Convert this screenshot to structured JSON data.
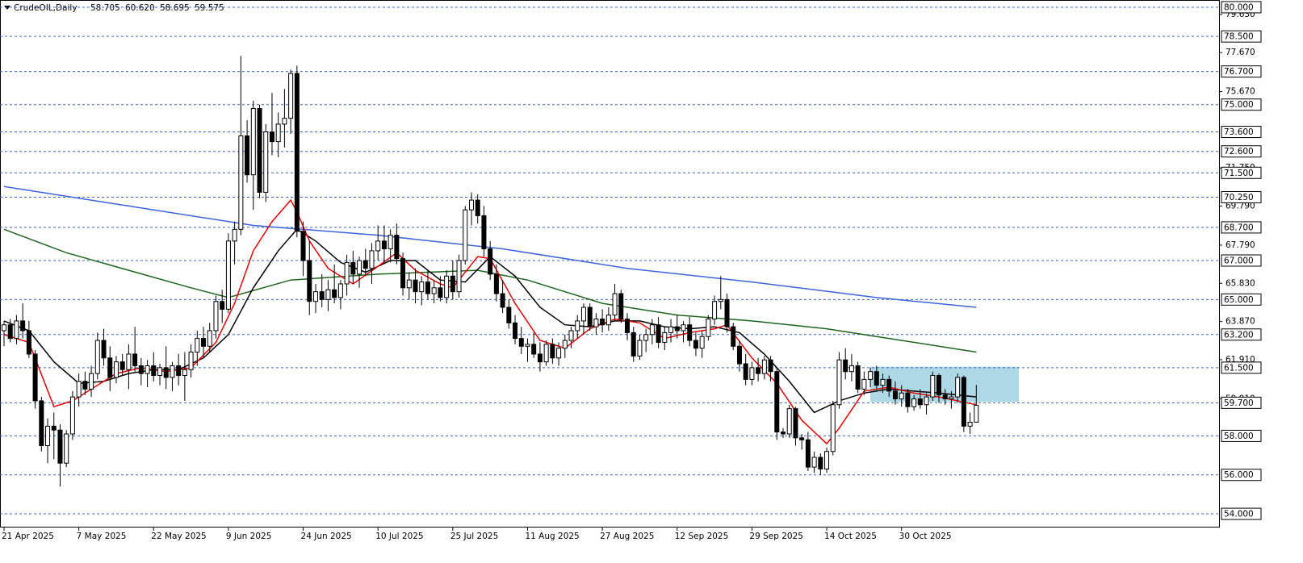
{
  "chart_data": {
    "type": "candlestick",
    "title": "CrudeOIL,Daily",
    "header_values": [
      "58.705",
      "60.620",
      "58.695",
      "59.575"
    ],
    "categories": [
      "21 Apr 2025",
      null,
      null,
      null,
      null,
      null,
      null,
      null,
      null,
      null,
      null,
      null,
      "7 May 2025",
      null,
      null,
      null,
      null,
      null,
      null,
      null,
      null,
      null,
      null,
      null,
      "22 May 2025",
      null,
      null,
      null,
      null,
      null,
      null,
      null,
      null,
      null,
      null,
      null,
      "9 Jun 2025",
      null,
      null,
      null,
      null,
      null,
      null,
      null,
      null,
      null,
      null,
      null,
      "24 Jun 2025",
      null,
      null,
      null,
      null,
      null,
      null,
      null,
      null,
      null,
      null,
      null,
      "10 Jul 2025",
      null,
      null,
      null,
      null,
      null,
      null,
      null,
      null,
      null,
      null,
      null,
      "25 Jul 2025",
      null,
      null,
      null,
      null,
      null,
      null,
      null,
      null,
      null,
      null,
      null,
      "11 Aug 2025",
      null,
      null,
      null,
      null,
      null,
      null,
      null,
      null,
      null,
      null,
      null,
      "27 Aug 2025",
      null,
      null,
      null,
      null,
      null,
      null,
      null,
      null,
      null,
      null,
      null,
      "12 Sep 2025",
      null,
      null,
      null,
      null,
      null,
      null,
      null,
      null,
      null,
      null,
      null,
      "29 Sep 2025",
      null,
      null,
      null,
      null,
      null,
      null,
      null,
      null,
      null,
      null,
      null,
      "14 Oct 2025",
      null,
      null,
      null,
      null,
      null,
      null,
      null,
      null,
      null,
      null,
      null,
      "30 Oct 2025",
      null,
      null,
      null,
      null,
      null,
      null,
      null,
      null,
      null,
      null,
      null,
      null
    ],
    "ohlc": [
      [
        63.4,
        63.9,
        62.6,
        63.7
      ],
      [
        63.7,
        64.0,
        62.8,
        63.0
      ],
      [
        63.0,
        64.2,
        62.7,
        63.9
      ],
      [
        63.9,
        64.8,
        63.0,
        63.4
      ],
      [
        63.4,
        63.9,
        62.0,
        62.2
      ],
      [
        62.2,
        62.4,
        59.4,
        59.8
      ],
      [
        59.8,
        60.0,
        57.2,
        57.5
      ],
      [
        57.5,
        58.9,
        56.6,
        58.5
      ],
      [
        58.5,
        59.2,
        56.8,
        58.3
      ],
      [
        58.3,
        58.6,
        55.4,
        56.6
      ],
      [
        56.6,
        58.3,
        56.4,
        58.1
      ],
      [
        58.1,
        60.3,
        57.8,
        60.0
      ],
      [
        60.0,
        61.2,
        59.5,
        60.8
      ],
      [
        60.8,
        61.3,
        60.1,
        60.4
      ],
      [
        60.4,
        61.6,
        60.0,
        61.2
      ],
      [
        61.2,
        63.3,
        60.9,
        62.9
      ],
      [
        62.9,
        63.5,
        61.6,
        62.0
      ],
      [
        62.0,
        62.6,
        60.3,
        61.0
      ],
      [
        61.0,
        62.1,
        60.7,
        61.8
      ],
      [
        61.8,
        62.2,
        61.1,
        61.4
      ],
      [
        61.4,
        62.7,
        60.4,
        62.2
      ],
      [
        62.2,
        63.6,
        61.3,
        61.6
      ],
      [
        61.6,
        62.0,
        60.6,
        61.2
      ],
      [
        61.2,
        61.9,
        60.5,
        61.6
      ],
      [
        61.6,
        62.3,
        60.8,
        61.1
      ],
      [
        61.1,
        61.7,
        60.6,
        61.5
      ],
      [
        61.5,
        62.6,
        60.4,
        61.0
      ],
      [
        61.0,
        61.8,
        60.3,
        61.6
      ],
      [
        61.6,
        62.2,
        60.6,
        61.1
      ],
      [
        61.1,
        62.3,
        59.8,
        61.4
      ],
      [
        61.4,
        62.7,
        61.0,
        62.3
      ],
      [
        62.3,
        63.4,
        61.6,
        63.0
      ],
      [
        63.0,
        63.6,
        62.0,
        62.6
      ],
      [
        62.6,
        63.8,
        62.3,
        63.4
      ],
      [
        63.4,
        65.2,
        63.0,
        64.9
      ],
      [
        64.9,
        65.5,
        63.8,
        64.5
      ],
      [
        64.5,
        68.4,
        64.3,
        68.0
      ],
      [
        68.0,
        69.0,
        66.8,
        68.6
      ],
      [
        68.6,
        77.5,
        68.3,
        73.4
      ],
      [
        73.4,
        74.2,
        71.0,
        71.4
      ],
      [
        71.4,
        75.2,
        69.6,
        74.8
      ],
      [
        74.8,
        75.0,
        70.2,
        70.5
      ],
      [
        70.5,
        74.0,
        70.0,
        73.6
      ],
      [
        73.6,
        75.6,
        72.4,
        73.1
      ],
      [
        73.1,
        74.6,
        72.3,
        74.0
      ],
      [
        74.0,
        75.8,
        72.8,
        74.3
      ],
      [
        74.3,
        76.8,
        73.5,
        76.6
      ],
      [
        76.6,
        77.0,
        68.2,
        68.5
      ],
      [
        68.5,
        69.0,
        66.2,
        67.0
      ],
      [
        67.0,
        68.0,
        64.2,
        64.9
      ],
      [
        64.9,
        65.8,
        64.3,
        65.4
      ],
      [
        65.4,
        66.3,
        64.6,
        65.0
      ],
      [
        65.0,
        66.0,
        64.4,
        65.5
      ],
      [
        65.5,
        66.8,
        64.8,
        65.1
      ],
      [
        65.1,
        66.0,
        64.5,
        65.8
      ],
      [
        65.8,
        67.3,
        65.2,
        66.9
      ],
      [
        66.9,
        67.5,
        65.8,
        66.3
      ],
      [
        66.3,
        67.2,
        65.6,
        67.0
      ],
      [
        67.0,
        67.6,
        66.2,
        66.6
      ],
      [
        66.6,
        67.9,
        65.8,
        67.5
      ],
      [
        67.5,
        68.8,
        67.0,
        68.0
      ],
      [
        68.0,
        68.8,
        66.9,
        67.6
      ],
      [
        67.6,
        68.6,
        66.9,
        68.3
      ],
      [
        68.3,
        68.9,
        66.8,
        67.1
      ],
      [
        67.1,
        67.4,
        65.2,
        65.6
      ],
      [
        65.6,
        66.4,
        65.0,
        66.0
      ],
      [
        66.0,
        66.6,
        64.8,
        65.4
      ],
      [
        65.4,
        66.2,
        64.7,
        65.9
      ],
      [
        65.9,
        66.5,
        65.0,
        65.3
      ],
      [
        65.3,
        66.0,
        64.8,
        65.6
      ],
      [
        65.6,
        66.2,
        64.9,
        65.1
      ],
      [
        65.1,
        66.5,
        64.8,
        66.2
      ],
      [
        66.2,
        67.0,
        65.0,
        65.4
      ],
      [
        65.4,
        67.3,
        65.1,
        67.0
      ],
      [
        67.0,
        69.8,
        66.8,
        69.6
      ],
      [
        69.6,
        70.5,
        68.8,
        70.1
      ],
      [
        70.1,
        70.4,
        68.9,
        69.3
      ],
      [
        69.3,
        69.8,
        67.2,
        67.6
      ],
      [
        67.6,
        68.0,
        66.0,
        66.3
      ],
      [
        66.3,
        66.8,
        64.9,
        65.3
      ],
      [
        65.3,
        66.0,
        64.3,
        64.6
      ],
      [
        64.6,
        65.0,
        63.5,
        63.8
      ],
      [
        63.8,
        64.2,
        62.7,
        63.0
      ],
      [
        63.0,
        63.6,
        62.2,
        62.6
      ],
      [
        62.6,
        63.0,
        61.8,
        62.7
      ],
      [
        62.7,
        63.3,
        62.0,
        62.2
      ],
      [
        62.2,
        62.8,
        61.3,
        61.8
      ],
      [
        61.8,
        62.9,
        61.6,
        62.7
      ],
      [
        62.7,
        63.0,
        61.7,
        62.0
      ],
      [
        62.0,
        62.8,
        61.6,
        62.5
      ],
      [
        62.5,
        63.2,
        62.0,
        62.9
      ],
      [
        62.9,
        63.6,
        62.5,
        63.4
      ],
      [
        63.4,
        64.2,
        63.0,
        63.9
      ],
      [
        63.9,
        64.8,
        63.2,
        64.6
      ],
      [
        64.6,
        64.8,
        63.4,
        63.6
      ],
      [
        63.6,
        64.3,
        63.2,
        64.0
      ],
      [
        64.0,
        64.5,
        63.3,
        63.7
      ],
      [
        63.7,
        64.6,
        63.4,
        64.2
      ],
      [
        64.2,
        65.8,
        63.9,
        65.3
      ],
      [
        65.3,
        65.5,
        63.8,
        64.0
      ],
      [
        64.0,
        64.3,
        62.9,
        63.3
      ],
      [
        63.3,
        63.6,
        61.8,
        62.1
      ],
      [
        62.1,
        63.2,
        61.9,
        62.9
      ],
      [
        62.9,
        63.5,
        62.3,
        63.2
      ],
      [
        63.2,
        64.0,
        62.7,
        63.7
      ],
      [
        63.7,
        64.1,
        62.5,
        62.8
      ],
      [
        62.8,
        63.6,
        62.4,
        63.3
      ],
      [
        63.3,
        64.0,
        62.8,
        63.6
      ],
      [
        63.6,
        64.2,
        63.0,
        63.4
      ],
      [
        63.4,
        63.9,
        62.8,
        63.7
      ],
      [
        63.7,
        64.1,
        62.6,
        62.9
      ],
      [
        62.9,
        63.3,
        62.1,
        62.5
      ],
      [
        62.5,
        63.4,
        62.0,
        63.1
      ],
      [
        63.1,
        64.2,
        62.9,
        64.0
      ],
      [
        64.0,
        65.2,
        63.7,
        64.9
      ],
      [
        64.9,
        66.2,
        64.5,
        65.0
      ],
      [
        65.0,
        65.3,
        63.3,
        63.6
      ],
      [
        63.6,
        63.8,
        62.4,
        62.6
      ],
      [
        62.6,
        62.9,
        61.3,
        61.7
      ],
      [
        61.7,
        62.2,
        60.6,
        60.9
      ],
      [
        60.9,
        61.8,
        60.6,
        61.5
      ],
      [
        61.5,
        62.0,
        60.8,
        61.2
      ],
      [
        61.2,
        62.1,
        60.9,
        61.9
      ],
      [
        61.9,
        62.1,
        60.8,
        61.3
      ],
      [
        61.3,
        61.5,
        57.8,
        58.2
      ],
      [
        58.2,
        58.4,
        57.9,
        58.1
      ],
      [
        58.1,
        59.6,
        57.9,
        59.4
      ],
      [
        59.4,
        59.5,
        57.5,
        57.9
      ],
      [
        57.9,
        58.1,
        57.3,
        57.8
      ],
      [
        57.8,
        58.2,
        56.2,
        56.4
      ],
      [
        56.4,
        57.2,
        56.1,
        56.9
      ],
      [
        56.9,
        57.1,
        56.0,
        56.3
      ],
      [
        56.3,
        57.4,
        56.1,
        57.2
      ],
      [
        57.2,
        59.8,
        57.0,
        59.6
      ],
      [
        59.6,
        62.3,
        59.4,
        61.9
      ],
      [
        61.9,
        62.5,
        60.9,
        61.3
      ],
      [
        61.3,
        62.2,
        60.8,
        61.6
      ],
      [
        61.6,
        61.8,
        60.2,
        60.4
      ],
      [
        60.4,
        61.3,
        60.1,
        60.9
      ],
      [
        60.9,
        61.5,
        60.5,
        61.3
      ],
      [
        61.3,
        61.6,
        60.3,
        60.6
      ],
      [
        60.6,
        61.2,
        60.2,
        60.9
      ],
      [
        60.9,
        61.1,
        60.0,
        60.3
      ],
      [
        60.3,
        60.8,
        59.6,
        59.9
      ],
      [
        59.9,
        60.6,
        59.5,
        60.2
      ],
      [
        60.2,
        60.4,
        59.2,
        59.5
      ],
      [
        59.5,
        60.1,
        59.3,
        59.9
      ],
      [
        59.9,
        60.4,
        59.4,
        59.6
      ],
      [
        59.6,
        60.2,
        59.1,
        60.0
      ],
      [
        60.0,
        61.3,
        59.8,
        61.1
      ],
      [
        61.1,
        61.2,
        59.7,
        60.1
      ],
      [
        60.1,
        60.4,
        59.6,
        59.9
      ],
      [
        59.9,
        60.3,
        59.4,
        60.0
      ],
      [
        60.0,
        61.2,
        59.7,
        61.0
      ],
      [
        61.0,
        61.1,
        58.2,
        58.5
      ],
      [
        58.5,
        59.2,
        58.1,
        58.7
      ],
      [
        58.705,
        60.62,
        58.695,
        59.575
      ]
    ],
    "up_color": "#ffffff",
    "down_color": "#000000",
    "moving_averages": [
      {
        "color": "#3c64dc",
        "x": [
          0,
          20,
          40,
          60,
          80,
          100,
          120,
          140,
          156
        ],
        "values": [
          70.8,
          69.8,
          68.8,
          68.3,
          67.6,
          66.6,
          65.9,
          65.1,
          64.6
        ]
      },
      {
        "color": "#1e641e",
        "x": [
          0,
          10,
          20,
          30,
          36,
          46,
          60,
          76,
          84,
          96,
          108,
          120,
          132,
          140,
          156
        ],
        "values": [
          68.6,
          67.4,
          66.5,
          65.6,
          65.1,
          66.0,
          66.3,
          66.5,
          66.0,
          64.8,
          64.2,
          63.9,
          63.5,
          63.1,
          62.3
        ]
      },
      {
        "color": "#000000",
        "x": [
          0,
          4,
          8,
          12,
          16,
          20,
          24,
          28,
          32,
          36,
          40,
          44,
          47,
          50,
          54,
          58,
          62,
          66,
          70,
          74,
          78,
          82,
          86,
          90,
          94,
          98,
          102,
          106,
          110,
          114,
          118,
          122,
          126,
          130,
          134,
          138,
          142,
          146,
          150,
          156
        ],
        "values": [
          63.9,
          63.4,
          61.8,
          60.7,
          60.8,
          61.2,
          61.4,
          61.4,
          62.0,
          63.2,
          65.6,
          67.5,
          68.6,
          68.0,
          66.9,
          66.4,
          67.0,
          67.0,
          66.0,
          65.9,
          67.2,
          66.2,
          64.6,
          63.7,
          63.6,
          63.9,
          63.9,
          63.6,
          63.5,
          63.6,
          63.3,
          62.2,
          60.8,
          59.2,
          59.8,
          60.2,
          60.4,
          60.3,
          60.2,
          60.0
        ]
      },
      {
        "color": "#e60000",
        "x": [
          0,
          4,
          8,
          11,
          14,
          18,
          22,
          26,
          30,
          34,
          37,
          40,
          43,
          46,
          47,
          49,
          52,
          56,
          60,
          63,
          66,
          70,
          72,
          76,
          78,
          82,
          86,
          90,
          94,
          98,
          102,
          106,
          110,
          114,
          116,
          120,
          124,
          128,
          132,
          134,
          138,
          142,
          146,
          150,
          156
        ],
        "values": [
          63.2,
          62.8,
          59.5,
          59.8,
          60.4,
          61.2,
          61.5,
          61.3,
          61.5,
          62.8,
          64.8,
          67.5,
          69.0,
          70.1,
          69.5,
          68.0,
          66.6,
          65.8,
          66.7,
          67.4,
          66.5,
          65.8,
          65.6,
          67.2,
          67.1,
          64.8,
          62.9,
          62.5,
          63.5,
          64.0,
          63.8,
          63.0,
          63.3,
          63.5,
          63.7,
          62.0,
          60.7,
          58.8,
          57.6,
          58.4,
          60.3,
          60.5,
          60.2,
          60.0,
          59.6
        ]
      }
    ],
    "zone": {
      "ylim": [
        59.75,
        61.55
      ],
      "color": "#add8e6"
    },
    "levels": [
      {
        "value": 80,
        "label": "80.000"
      },
      {
        "value": 78.5,
        "label": "78.500"
      },
      {
        "value": 76.7,
        "label": "76.700"
      },
      {
        "value": 75,
        "label": "75.000"
      },
      {
        "value": 73.6,
        "label": "73.600"
      },
      {
        "value": 72.6,
        "label": "72.600"
      },
      {
        "value": 71.5,
        "label": "71.500"
      },
      {
        "value": 70.25,
        "label": "70.250"
      },
      {
        "value": 68.7,
        "label": "68.700"
      },
      {
        "value": 67,
        "label": "67.000"
      },
      {
        "value": 65,
        "label": "65.000"
      },
      {
        "value": 63.2,
        "label": "63.200"
      },
      {
        "value": 61.5,
        "label": "61.500"
      },
      {
        "value": 59.7,
        "label": "59.700"
      },
      {
        "value": 58,
        "label": "58.000"
      },
      {
        "value": 56,
        "label": "56.000"
      },
      {
        "value": 54,
        "label": "54.000"
      }
    ],
    "yticks": [
      {
        "value": 79.63,
        "label": "79.630"
      },
      {
        "value": 77.67,
        "label": "77.670"
      },
      {
        "value": 75.67,
        "label": "75.670"
      },
      {
        "value": 71.75,
        "label": "71.750"
      },
      {
        "value": 69.79,
        "label": "69.790"
      },
      {
        "value": 67.79,
        "label": "67.790"
      },
      {
        "value": 65.83,
        "label": "65.830"
      },
      {
        "value": 63.87,
        "label": "63.870"
      },
      {
        "value": 61.91,
        "label": "61.910"
      },
      {
        "value": 59.91,
        "label": "59.910"
      }
    ],
    "ylim": [
      53.34,
      80.37
    ]
  }
}
